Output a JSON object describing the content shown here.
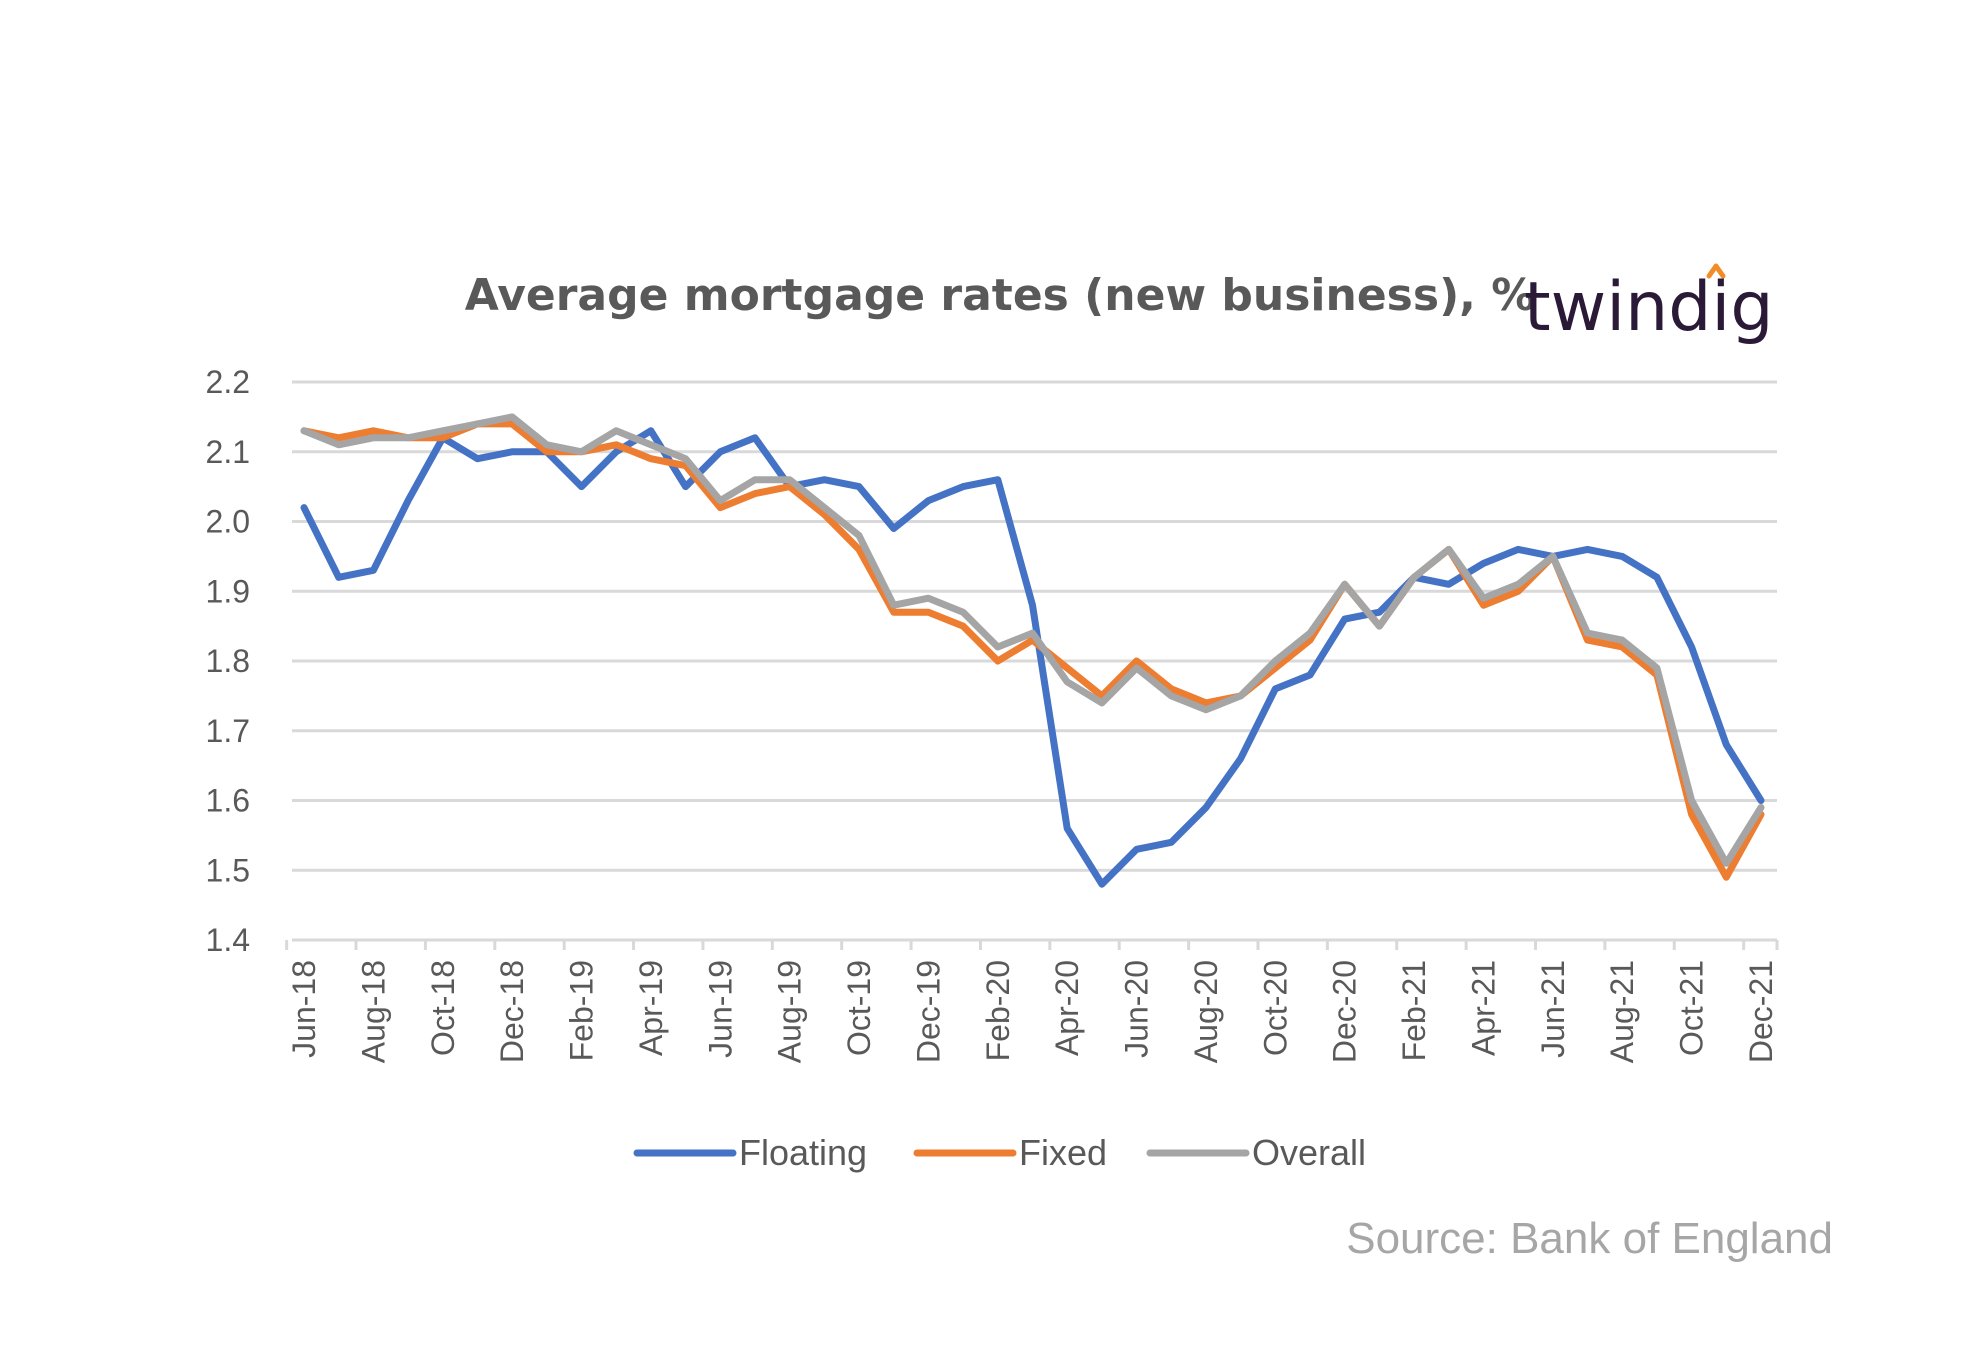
{
  "brand": {
    "text": "twindig",
    "accent_color": "#f28c28",
    "text_color": "#2b1a37"
  },
  "source": "Source: Bank of England",
  "chart_data": {
    "type": "line",
    "title": "Average mortgage rates (new business), %",
    "xlabel": "",
    "ylabel": "",
    "ylim": [
      1.4,
      2.2
    ],
    "yticks": [
      "2.2",
      "2.1",
      "2.0",
      "1.9",
      "1.8",
      "1.7",
      "1.6",
      "1.5",
      "1.4"
    ],
    "grid": true,
    "legend_position": "bottom",
    "categories": [
      "Jun-18",
      "Jul-18",
      "Aug-18",
      "Sep-18",
      "Oct-18",
      "Nov-18",
      "Dec-18",
      "Jan-19",
      "Feb-19",
      "Mar-19",
      "Apr-19",
      "May-19",
      "Jun-19",
      "Jul-19",
      "Aug-19",
      "Sep-19",
      "Oct-19",
      "Nov-19",
      "Dec-19",
      "Jan-20",
      "Feb-20",
      "Mar-20",
      "Apr-20",
      "May-20",
      "Jun-20",
      "Jul-20",
      "Aug-20",
      "Sep-20",
      "Oct-20",
      "Nov-20",
      "Dec-20",
      "Jan-21",
      "Feb-21",
      "Mar-21",
      "Apr-21",
      "May-21",
      "Jun-21",
      "Jul-21",
      "Aug-21",
      "Sep-21",
      "Oct-21",
      "Nov-21",
      "Dec-21"
    ],
    "tick_labels": [
      "Jun-18",
      "Aug-18",
      "Oct-18",
      "Dec-18",
      "Feb-19",
      "Apr-19",
      "Jun-19",
      "Aug-19",
      "Oct-19",
      "Dec-19",
      "Feb-20",
      "Apr-20",
      "Jun-20",
      "Aug-20",
      "Oct-20",
      "Dec-20",
      "Feb-21",
      "Apr-21",
      "Jun-21",
      "Aug-21",
      "Oct-21",
      "Dec-21"
    ],
    "series": [
      {
        "name": "Floating",
        "color": "#4472c4",
        "values": [
          2.02,
          1.92,
          1.93,
          2.03,
          2.12,
          2.09,
          2.1,
          2.1,
          2.05,
          2.1,
          2.13,
          2.05,
          2.1,
          2.12,
          2.05,
          2.06,
          2.05,
          1.99,
          2.03,
          2.05,
          2.06,
          1.88,
          1.56,
          1.48,
          1.53,
          1.54,
          1.59,
          1.66,
          1.76,
          1.78,
          1.86,
          1.87,
          1.92,
          1.91,
          1.94,
          1.96,
          1.95,
          1.96,
          1.95,
          1.92,
          1.82,
          1.68,
          1.6
        ]
      },
      {
        "name": "Fixed",
        "color": "#ed7d31",
        "values": [
          2.13,
          2.12,
          2.13,
          2.12,
          2.12,
          2.14,
          2.14,
          2.1,
          2.1,
          2.11,
          2.09,
          2.08,
          2.02,
          2.04,
          2.05,
          2.01,
          1.96,
          1.87,
          1.87,
          1.85,
          1.8,
          1.83,
          1.79,
          1.75,
          1.8,
          1.76,
          1.74,
          1.75,
          1.79,
          1.83,
          1.91,
          1.85,
          1.92,
          1.96,
          1.88,
          1.9,
          1.95,
          1.83,
          1.82,
          1.78,
          1.58,
          1.49,
          1.58
        ]
      },
      {
        "name": "Overall",
        "color": "#a5a5a5",
        "values": [
          2.13,
          2.11,
          2.12,
          2.12,
          2.13,
          2.14,
          2.15,
          2.11,
          2.1,
          2.13,
          2.11,
          2.09,
          2.03,
          2.06,
          2.06,
          2.02,
          1.98,
          1.88,
          1.89,
          1.87,
          1.82,
          1.84,
          1.77,
          1.74,
          1.79,
          1.75,
          1.73,
          1.75,
          1.8,
          1.84,
          1.91,
          1.85,
          1.92,
          1.96,
          1.89,
          1.91,
          1.95,
          1.84,
          1.83,
          1.79,
          1.6,
          1.51,
          1.59
        ]
      }
    ]
  }
}
